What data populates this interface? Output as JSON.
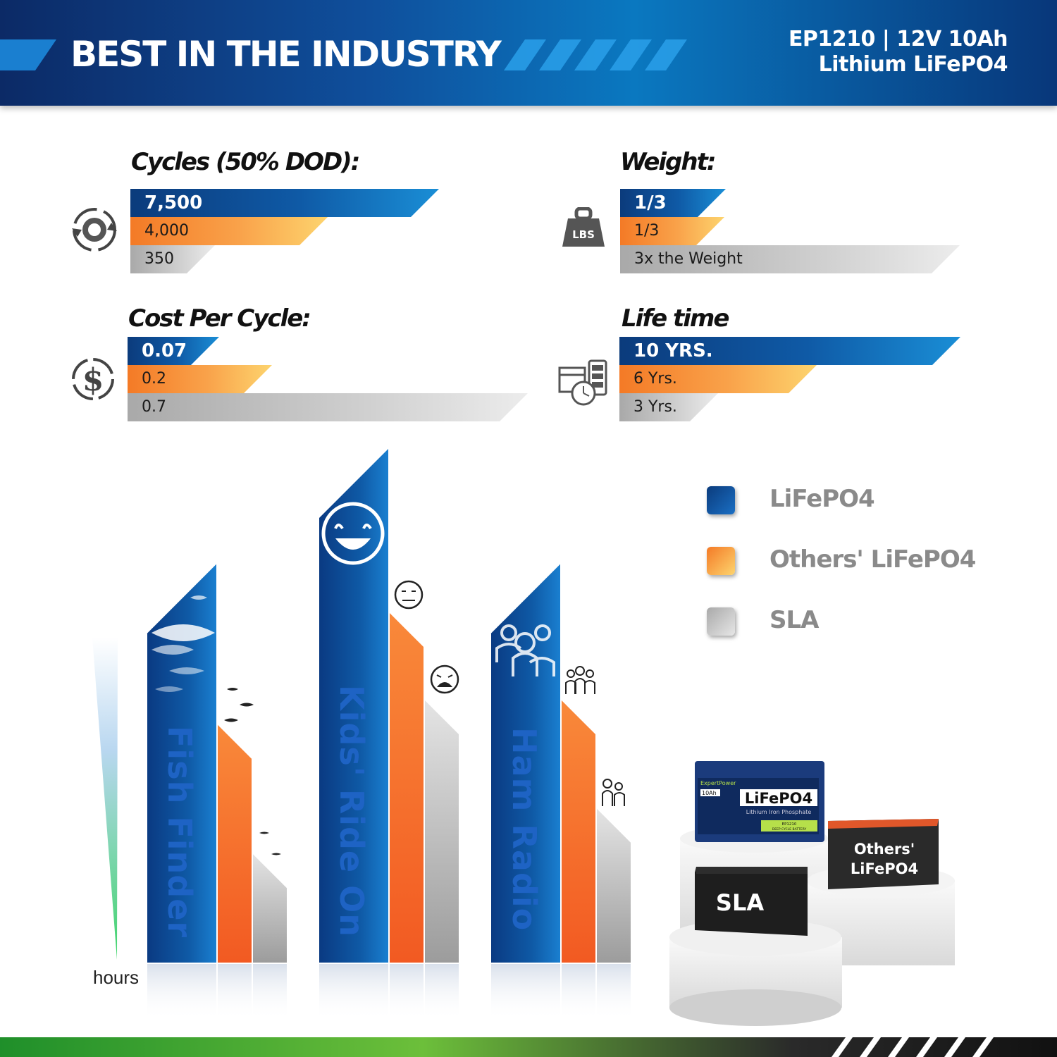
{
  "header": {
    "title": "BEST IN THE INDUSTRY",
    "spec_line1": "EP1210 | 12V 10Ah",
    "spec_line2": "Lithium LiFePO4"
  },
  "colors": {
    "lifepo4": "#0f5aa6",
    "others_lifepo4": "#f47a26",
    "sla": "#c4c4c4"
  },
  "metrics": {
    "cycles": {
      "title": "Cycles (50% DOD):",
      "icon": "cycle-icon",
      "labels": [
        "7,500",
        "4,000",
        "350"
      ]
    },
    "weight": {
      "title": "Weight:",
      "icon": "weight-lbs-icon",
      "icon_text": "LBS",
      "labels": [
        "1/3",
        "1/3",
        "3x the Weight"
      ]
    },
    "cost": {
      "title": "Cost Per Cycle:",
      "icon": "dollar-icon",
      "labels": [
        "0.07",
        "0.2",
        "0.7"
      ]
    },
    "lifetime": {
      "title": "Life time",
      "icon": "calendar-battery-icon",
      "labels": [
        "10 YRS.",
        "6 Yrs.",
        "3 Yrs."
      ]
    }
  },
  "chart_data": {
    "type": "bar",
    "categories": [
      "Fish Finder",
      "Kids' Ride On",
      "Ham Radio"
    ],
    "series": [
      {
        "name": "LiFePO4",
        "values": [
          570,
          735,
          570
        ]
      },
      {
        "name": "Others' LiFePO4",
        "values": [
          340,
          500,
          375
        ]
      },
      {
        "name": "SLA",
        "values": [
          155,
          375,
          220
        ]
      }
    ],
    "ylabel": "hours",
    "ylim": [
      0,
      740
    ],
    "legend_position": "top-right",
    "grid": false
  },
  "legend": {
    "items": [
      {
        "label": "LiFePO4"
      },
      {
        "label": "Others' LiFePO4"
      },
      {
        "label": "SLA"
      }
    ]
  },
  "products": {
    "main": {
      "brand": "ExpertPower",
      "capacity": "10Ah",
      "name": "LiFePO4",
      "sub": "Lithium Iron Phosphate",
      "model": "EP1210",
      "tag": "DEEP CYCLE BATTERY"
    },
    "sla": "SLA",
    "others_line1": "Others'",
    "others_line2": "LiFePO4"
  }
}
